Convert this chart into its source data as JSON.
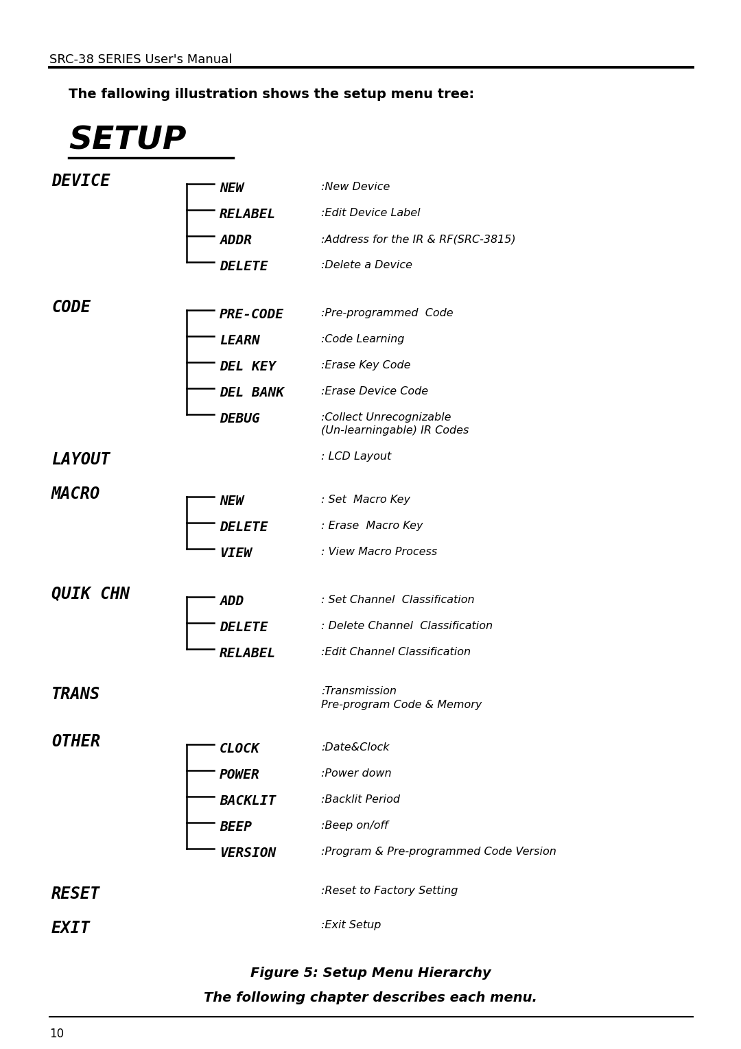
{
  "bg_color": "#ffffff",
  "header_text": "SRC-38 SERIES User's Manual",
  "subtitle": "The fallowing illustration shows the setup menu tree:",
  "setup_title": "SETUP",
  "footer_fig": "Figure 5: Setup Menu Hierarchy",
  "footer_sub": "The following chapter describes each menu.",
  "page_num": "10",
  "menu_items": [
    {
      "category": "DEVICE",
      "children": [
        {
          "name": "NEW",
          "desc": ":New Device"
        },
        {
          "name": "RELABEL",
          "desc": ":Edit Device Label"
        },
        {
          "name": "ADDR",
          "desc": ":Address for the IR & RF(SRC-3815)"
        },
        {
          "name": "DELETE",
          "desc": ":Delete a Device"
        }
      ]
    },
    {
      "category": "CODE",
      "children": [
        {
          "name": "PRE-CODE",
          "desc": ":Pre-programmed  Code"
        },
        {
          "name": "LEARN",
          "desc": ":Code Learning"
        },
        {
          "name": "DEL KEY",
          "desc": ":Erase Key Code"
        },
        {
          "name": "DEL BANK",
          "desc": ":Erase Device Code"
        },
        {
          "name": "DEBUG",
          "desc": ":Collect Unrecognizable\n(Un-learningable) IR Codes"
        }
      ]
    },
    {
      "category": "LAYOUT",
      "children": [],
      "desc": ": LCD Layout"
    },
    {
      "category": "MACRO",
      "children": [
        {
          "name": "NEW",
          "desc": ": Set  Macro Key"
        },
        {
          "name": "DELETE",
          "desc": ": Erase  Macro Key"
        },
        {
          "name": "VIEW",
          "desc": ": View Macro Process"
        }
      ]
    },
    {
      "category": "QUIK CHN",
      "children": [
        {
          "name": "ADD",
          "desc": ": Set Channel  Classification"
        },
        {
          "name": "DELETE",
          "desc": ": Delete Channel  Classification"
        },
        {
          "name": "RELABEL",
          "desc": ":Edit Channel Classification"
        }
      ]
    },
    {
      "category": "TRANS",
      "children": [],
      "desc": ":Transmission\nPre-program Code & Memory"
    },
    {
      "category": "OTHER",
      "children": [
        {
          "name": "CLOCK",
          "desc": ":Date&Clock"
        },
        {
          "name": "POWER",
          "desc": ":Power down"
        },
        {
          "name": "BACKLIT",
          "desc": ":Backlit Period"
        },
        {
          "name": "BEEP",
          "desc": ":Beep on/off"
        },
        {
          "name": "VERSION",
          "desc": ":Program & Pre-programmed Code Version"
        }
      ]
    },
    {
      "category": "RESET",
      "children": [],
      "desc": ":Reset to Factory Setting"
    },
    {
      "category": "EXIT",
      "children": [],
      "desc": ":Exit Setup"
    }
  ]
}
